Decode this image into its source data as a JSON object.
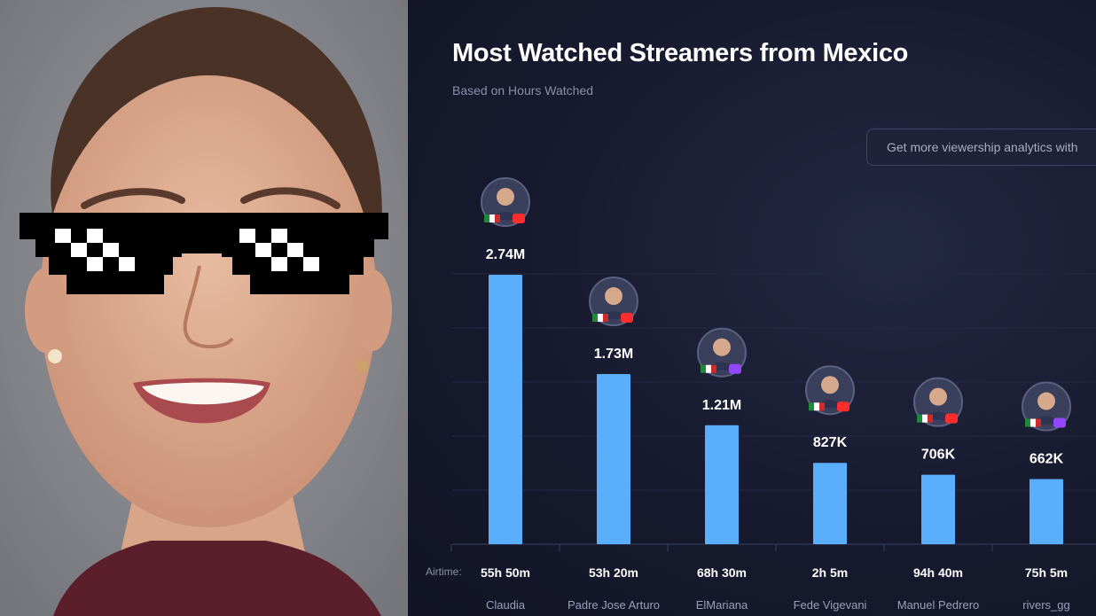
{
  "chart_data": {
    "type": "bar",
    "title": "Most Watched Streamers from Mexico",
    "subtitle": "Based on Hours Watched",
    "categories": [
      "Claudia",
      "Padre Jose Arturo",
      "ElMariana",
      "Fede Vigevani",
      "Manuel Pedrero",
      "rivers_gg"
    ],
    "values": [
      2740000,
      1730000,
      1210000,
      827000,
      706000,
      662000
    ],
    "value_labels": [
      "2.74M",
      "1.73M",
      "1.21M",
      "827K",
      "706K",
      "662K"
    ],
    "airtime_label": "Airtime:",
    "airtime": [
      "55h 50m",
      "53h 20m",
      "68h 30m",
      "2h 5m",
      "94h 40m",
      "75h 5m"
    ],
    "platforms": [
      "youtube",
      "youtube",
      "twitch",
      "youtube",
      "youtube",
      "twitch"
    ],
    "ylim": [
      0,
      2740000
    ],
    "bar_color": "#5aaefc",
    "grid": true
  },
  "cta": {
    "label": "Get more viewership analytics with"
  },
  "colors": {
    "background": "#15182b",
    "title": "#ffffff",
    "muted": "#8a90a8",
    "youtube": "#ff2d2d",
    "twitch": "#9146ff"
  }
}
